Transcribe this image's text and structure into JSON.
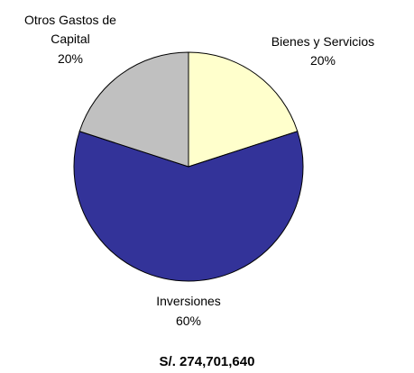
{
  "chart_data": {
    "type": "pie",
    "categories": [
      "Bienes y Servicios",
      "Inversiones",
      "Otros Gastos de Capital"
    ],
    "values": [
      20,
      60,
      20
    ],
    "value_labels": [
      "20%",
      "60%",
      "20%"
    ],
    "colors": [
      "#ffffcc",
      "#333399",
      "#c0c0c0"
    ],
    "annotation": "S/. 274,701,640"
  }
}
